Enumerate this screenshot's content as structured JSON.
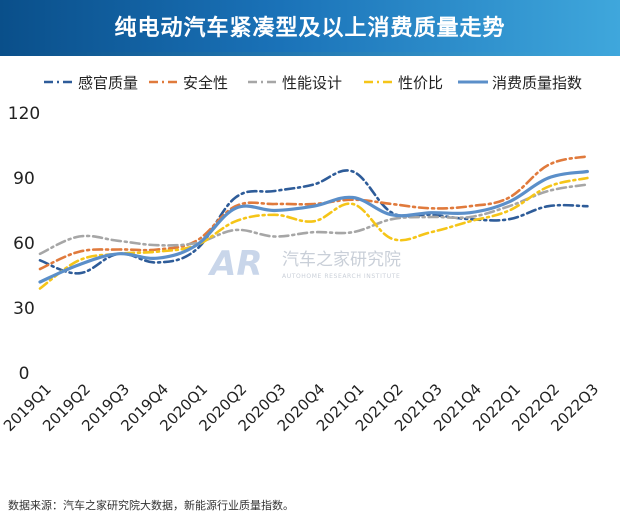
{
  "header": {
    "title": "纯电动汽车紧凑型及以上消费质量走势"
  },
  "footer": {
    "source": "数据来源：汽车之家研究院大数据，新能源行业质量指数。"
  },
  "watermark": {
    "logo": "AR",
    "name": "汽车之家研究院",
    "subtitle": "AUTOHOME RESEARCH INSTITUTE"
  },
  "chart_data": {
    "type": "line",
    "title": "",
    "xlabel": "",
    "ylabel": "",
    "ylim": [
      0,
      120
    ],
    "yticks": [
      0,
      30,
      60,
      90,
      120
    ],
    "grid": false,
    "legend": "top",
    "categories": [
      "2019Q1",
      "2019Q2",
      "2019Q3",
      "2019Q4",
      "2020Q1",
      "2020Q2",
      "2020Q3",
      "2020Q4",
      "2021Q1",
      "2021Q2",
      "2021Q3",
      "2021Q4",
      "2022Q1",
      "2022Q2",
      "2022Q3"
    ],
    "series": [
      {
        "name": "感官质量",
        "color": "#2e5c99",
        "dash": "dashdot",
        "values": [
          52,
          46,
          55,
          51,
          57,
          81,
          84,
          87,
          93,
          74,
          73,
          71,
          71,
          77,
          77
        ]
      },
      {
        "name": "安全性",
        "color": "#e07a3c",
        "dash": "dashdot",
        "values": [
          48,
          56,
          57,
          57,
          61,
          77,
          78,
          78,
          80,
          78,
          76,
          77,
          81,
          96,
          100
        ]
      },
      {
        "name": "性能设计",
        "color": "#a6a6a6",
        "dash": "dashdot",
        "values": [
          55,
          63,
          61,
          59,
          60,
          66,
          63,
          65,
          65,
          71,
          72,
          72,
          77,
          84,
          87
        ]
      },
      {
        "name": "性价比",
        "color": "#f5c518",
        "dash": "dashdot",
        "values": [
          39,
          52,
          55,
          56,
          59,
          70,
          73,
          70,
          78,
          62,
          65,
          70,
          75,
          86,
          90
        ]
      },
      {
        "name": "消费质量指数",
        "color": "#5b8fc9",
        "dash": "solid",
        "values": [
          42,
          50,
          55,
          53,
          59,
          76,
          75,
          77,
          81,
          73,
          74,
          74,
          79,
          90,
          93
        ]
      }
    ]
  }
}
